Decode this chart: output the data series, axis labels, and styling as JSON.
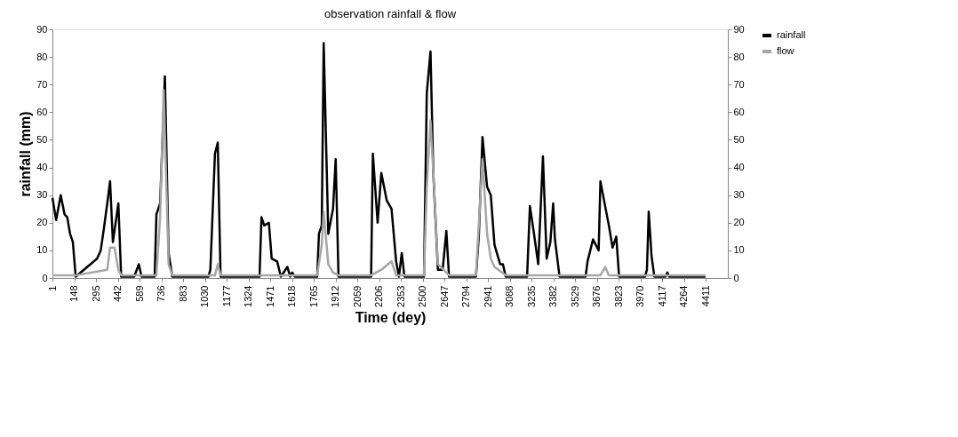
{
  "chart_data": {
    "type": "line",
    "title": "observation rainfall & flow",
    "xlabel": "Time (dey)",
    "ylabel": "rainfall (mm)",
    "xlim": [
      1,
      4560
    ],
    "xticks": [
      1,
      148,
      295,
      442,
      589,
      736,
      883,
      1030,
      1177,
      1324,
      1471,
      1618,
      1765,
      1912,
      2059,
      2206,
      2353,
      2500,
      2647,
      2794,
      2941,
      3088,
      3235,
      3382,
      3529,
      3676,
      3823,
      3970,
      4117,
      4264,
      4411
    ],
    "ylim": [
      0,
      90
    ],
    "yticks": [
      0,
      10,
      20,
      30,
      40,
      50,
      60,
      70,
      80,
      90
    ],
    "y2lim": [
      0,
      90
    ],
    "y2ticks": [
      0,
      10,
      20,
      30,
      40,
      50,
      60,
      70,
      80,
      90
    ],
    "grid": false,
    "legend": "right",
    "series": [
      {
        "name": "rainfall",
        "color": "#000000",
        "x": [
          1,
          26,
          57,
          83,
          101,
          120,
          139,
          158,
          302,
          327,
          346,
          371,
          390,
          409,
          446,
          465,
          553,
          584,
          603,
          691,
          703,
          728,
          760,
          785,
          810,
          1054,
          1067,
          1098,
          1117,
          1136,
          1399,
          1412,
          1431,
          1462,
          1481,
          1518,
          1543,
          1587,
          1606,
          1619,
          1637,
          1788,
          1800,
          1819,
          1832,
          1863,
          1895,
          1913,
          1932,
          2152,
          2164,
          2196,
          2221,
          2258,
          2290,
          2321,
          2340,
          2359,
          2377,
          2509,
          2528,
          2553,
          2572,
          2603,
          2635,
          2660,
          2678,
          2860,
          2879,
          2904,
          2935,
          2960,
          2985,
          3023,
          3042,
          3061,
          3205,
          3224,
          3249,
          3280,
          3312,
          3337,
          3362,
          3381,
          3393,
          3424,
          3600,
          3613,
          3650,
          3688,
          3700,
          3732,
          3757,
          3782,
          3807,
          3826,
          4001,
          4014,
          4026,
          4045,
          4064,
          4139,
          4152,
          4164,
          4409
        ],
        "values": [
          29,
          21,
          30,
          23,
          22,
          16,
          13,
          0.5,
          7,
          10,
          17,
          27,
          35,
          13,
          27,
          0.5,
          0.5,
          5,
          0.5,
          0.5,
          23,
          27,
          73,
          9,
          0.5,
          0.5,
          3,
          45,
          49,
          0.5,
          0.5,
          22,
          19,
          20,
          7,
          6,
          0.5,
          4,
          0.5,
          2,
          0.5,
          0.5,
          16,
          19,
          85,
          16,
          25,
          43,
          0.5,
          0.5,
          45,
          20,
          38,
          28,
          25,
          6,
          0.5,
          9,
          0.5,
          0.5,
          67,
          82,
          38,
          3,
          3,
          17,
          0.5,
          0.5,
          15,
          51,
          33,
          30,
          12,
          5,
          5,
          0.5,
          0.5,
          26,
          17,
          5,
          44,
          7,
          13,
          27,
          14,
          0.5,
          0.5,
          6,
          14,
          10,
          35,
          26,
          19,
          11,
          15,
          0.5,
          0.5,
          3,
          24,
          8,
          0.5,
          0.5,
          2,
          0.5,
          0.5
        ]
      },
      {
        "name": "flow",
        "color": "#a6a6a6",
        "axis": "y2",
        "x": [
          1,
          160,
          371,
          390,
          420,
          446,
          465,
          703,
          728,
          752,
          785,
          810,
          1098,
          1117,
          1136,
          1788,
          1819,
          1832,
          1863,
          1895,
          1932,
          2152,
          2221,
          2290,
          2321,
          2509,
          2528,
          2553,
          2572,
          2603,
          2678,
          2860,
          2904,
          2935,
          2960,
          2985,
          3061,
          3205,
          3700,
          3732,
          3757,
          4409
        ],
        "values": [
          1,
          1,
          3,
          11,
          11,
          3,
          1,
          1,
          22,
          68,
          5,
          1,
          1,
          5,
          1,
          1,
          12,
          24,
          5,
          2,
          1,
          1,
          3,
          6,
          1,
          1,
          33,
          57,
          38,
          5,
          1,
          1,
          43,
          16,
          7,
          4,
          1,
          1,
          1,
          4,
          1,
          1
        ]
      }
    ]
  }
}
